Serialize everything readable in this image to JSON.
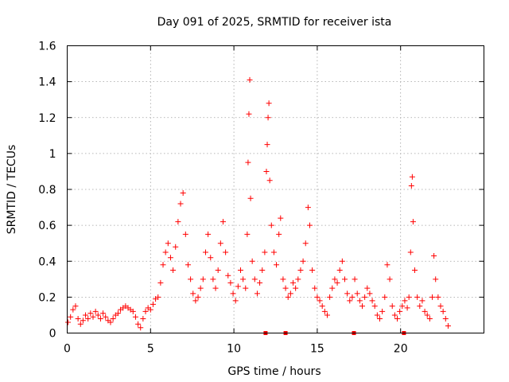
{
  "chart_data": {
    "type": "scatter",
    "title": "Day 091 of 2025, SRMTID for receiver ista",
    "xlabel": "GPS time / hours",
    "ylabel": "SRMTID / TECUs",
    "xlim": [
      0,
      25
    ],
    "ylim": [
      0,
      1.6
    ],
    "xticks": [
      0,
      5,
      10,
      15,
      20
    ],
    "xtick_labels": [
      "0",
      "5",
      "10",
      "15",
      "20"
    ],
    "yticks": [
      0,
      0.2,
      0.4,
      0.6,
      0.8,
      1,
      1.2,
      1.4,
      1.6
    ],
    "ytick_labels": [
      "0",
      "0.2",
      "0.4",
      "0.6",
      "0.8",
      "1",
      "1.2",
      "1.4",
      "1.6"
    ],
    "grid": true,
    "marker": "plus",
    "color": "#ff0000",
    "series": [
      {
        "name": "SRMTID",
        "points": [
          [
            0.05,
            0.06
          ],
          [
            0.2,
            0.09
          ],
          [
            0.35,
            0.13
          ],
          [
            0.5,
            0.15
          ],
          [
            0.65,
            0.08
          ],
          [
            0.8,
            0.05
          ],
          [
            0.95,
            0.07
          ],
          [
            1.1,
            0.1
          ],
          [
            1.25,
            0.08
          ],
          [
            1.4,
            0.11
          ],
          [
            1.55,
            0.09
          ],
          [
            1.7,
            0.12
          ],
          [
            1.85,
            0.1
          ],
          [
            2.0,
            0.08
          ],
          [
            2.15,
            0.11
          ],
          [
            2.3,
            0.09
          ],
          [
            2.45,
            0.07
          ],
          [
            2.6,
            0.06
          ],
          [
            2.75,
            0.08
          ],
          [
            2.9,
            0.1
          ],
          [
            3.05,
            0.11
          ],
          [
            3.2,
            0.13
          ],
          [
            3.35,
            0.14
          ],
          [
            3.5,
            0.15
          ],
          [
            3.65,
            0.14
          ],
          [
            3.8,
            0.13
          ],
          [
            3.95,
            0.12
          ],
          [
            4.1,
            0.09
          ],
          [
            4.25,
            0.05
          ],
          [
            4.4,
            0.03
          ],
          [
            4.55,
            0.08
          ],
          [
            4.7,
            0.12
          ],
          [
            4.85,
            0.14
          ],
          [
            5.0,
            0.13
          ],
          [
            5.15,
            0.16
          ],
          [
            5.3,
            0.19
          ],
          [
            5.45,
            0.2
          ],
          [
            5.6,
            0.28
          ],
          [
            5.75,
            0.38
          ],
          [
            5.9,
            0.45
          ],
          [
            6.05,
            0.5
          ],
          [
            6.2,
            0.42
          ],
          [
            6.35,
            0.35
          ],
          [
            6.5,
            0.48
          ],
          [
            6.65,
            0.62
          ],
          [
            6.8,
            0.72
          ],
          [
            6.95,
            0.78
          ],
          [
            7.1,
            0.55
          ],
          [
            7.25,
            0.38
          ],
          [
            7.4,
            0.3
          ],
          [
            7.55,
            0.22
          ],
          [
            7.7,
            0.18
          ],
          [
            7.85,
            0.2
          ],
          [
            8.0,
            0.25
          ],
          [
            8.15,
            0.3
          ],
          [
            8.3,
            0.45
          ],
          [
            8.45,
            0.55
          ],
          [
            8.6,
            0.42
          ],
          [
            8.75,
            0.3
          ],
          [
            8.9,
            0.25
          ],
          [
            9.05,
            0.35
          ],
          [
            9.2,
            0.5
          ],
          [
            9.35,
            0.62
          ],
          [
            9.5,
            0.45
          ],
          [
            9.65,
            0.32
          ],
          [
            9.8,
            0.28
          ],
          [
            9.95,
            0.22
          ],
          [
            10.1,
            0.18
          ],
          [
            10.25,
            0.26
          ],
          [
            10.4,
            0.35
          ],
          [
            10.55,
            0.3
          ],
          [
            10.7,
            0.25
          ],
          [
            10.8,
            0.55
          ],
          [
            10.85,
            0.95
          ],
          [
            10.9,
            1.22
          ],
          [
            10.95,
            1.41
          ],
          [
            11.0,
            0.75
          ],
          [
            11.1,
            0.4
          ],
          [
            11.25,
            0.3
          ],
          [
            11.4,
            0.22
          ],
          [
            11.55,
            0.28
          ],
          [
            11.7,
            0.35
          ],
          [
            11.85,
            0.45
          ],
          [
            11.95,
            0.9
          ],
          [
            12.0,
            1.05
          ],
          [
            12.05,
            1.2
          ],
          [
            12.1,
            1.28
          ],
          [
            12.15,
            0.85
          ],
          [
            12.25,
            0.6
          ],
          [
            12.4,
            0.45
          ],
          [
            12.55,
            0.38
          ],
          [
            12.7,
            0.55
          ],
          [
            12.8,
            0.64
          ],
          [
            12.95,
            0.3
          ],
          [
            13.1,
            0.25
          ],
          [
            13.25,
            0.2
          ],
          [
            13.4,
            0.22
          ],
          [
            13.55,
            0.28
          ],
          [
            13.7,
            0.25
          ],
          [
            13.85,
            0.3
          ],
          [
            14.0,
            0.35
          ],
          [
            14.15,
            0.4
          ],
          [
            14.3,
            0.5
          ],
          [
            14.45,
            0.7
          ],
          [
            14.55,
            0.6
          ],
          [
            14.7,
            0.35
          ],
          [
            14.85,
            0.25
          ],
          [
            15.0,
            0.2
          ],
          [
            15.15,
            0.18
          ],
          [
            15.3,
            0.15
          ],
          [
            15.45,
            0.12
          ],
          [
            15.6,
            0.1
          ],
          [
            15.75,
            0.2
          ],
          [
            15.9,
            0.25
          ],
          [
            16.05,
            0.3
          ],
          [
            16.2,
            0.28
          ],
          [
            16.35,
            0.35
          ],
          [
            16.5,
            0.4
          ],
          [
            16.65,
            0.3
          ],
          [
            16.8,
            0.22
          ],
          [
            16.95,
            0.18
          ],
          [
            17.1,
            0.2
          ],
          [
            17.25,
            0.3
          ],
          [
            17.4,
            0.22
          ],
          [
            17.55,
            0.18
          ],
          [
            17.7,
            0.15
          ],
          [
            17.85,
            0.2
          ],
          [
            18.0,
            0.25
          ],
          [
            18.15,
            0.22
          ],
          [
            18.3,
            0.18
          ],
          [
            18.45,
            0.15
          ],
          [
            18.6,
            0.1
          ],
          [
            18.75,
            0.08
          ],
          [
            18.9,
            0.12
          ],
          [
            19.05,
            0.2
          ],
          [
            19.2,
            0.38
          ],
          [
            19.35,
            0.3
          ],
          [
            19.5,
            0.15
          ],
          [
            19.65,
            0.1
          ],
          [
            19.8,
            0.08
          ],
          [
            19.95,
            0.12
          ],
          [
            20.1,
            0.15
          ],
          [
            20.25,
            0.18
          ],
          [
            20.4,
            0.14
          ],
          [
            20.5,
            0.2
          ],
          [
            20.6,
            0.45
          ],
          [
            20.65,
            0.82
          ],
          [
            20.7,
            0.87
          ],
          [
            20.75,
            0.62
          ],
          [
            20.85,
            0.35
          ],
          [
            21.0,
            0.2
          ],
          [
            21.15,
            0.15
          ],
          [
            21.3,
            0.18
          ],
          [
            21.45,
            0.12
          ],
          [
            21.6,
            0.1
          ],
          [
            21.75,
            0.08
          ],
          [
            21.9,
            0.2
          ],
          [
            22.0,
            0.43
          ],
          [
            22.1,
            0.3
          ],
          [
            22.25,
            0.2
          ],
          [
            22.4,
            0.15
          ],
          [
            22.55,
            0.12
          ],
          [
            22.7,
            0.08
          ],
          [
            22.85,
            0.04
          ]
        ]
      }
    ],
    "axis_squares_x": [
      11.9,
      13.1,
      17.2,
      20.2
    ]
  }
}
